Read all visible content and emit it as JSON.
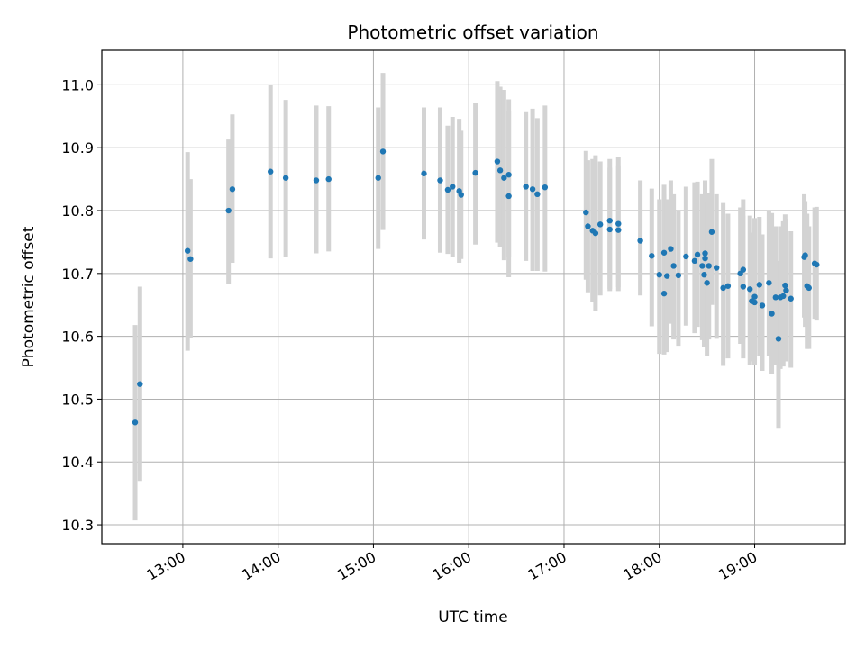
{
  "chart_data": {
    "type": "scatter",
    "title": "Photometric offset variation",
    "xlabel": "UTC time",
    "ylabel": "Photometric offset",
    "x_unit": "hours UTC (decimal)",
    "xlim": [
      12.15,
      19.95
    ],
    "ylim": [
      10.27,
      11.055
    ],
    "x_ticks": [
      {
        "value": 13,
        "label": "13:00"
      },
      {
        "value": 14,
        "label": "14:00"
      },
      {
        "value": 15,
        "label": "15:00"
      },
      {
        "value": 16,
        "label": "16:00"
      },
      {
        "value": 17,
        "label": "17:00"
      },
      {
        "value": 18,
        "label": "18:00"
      },
      {
        "value": 19,
        "label": "19:00"
      }
    ],
    "y_ticks": [
      {
        "value": 10.3,
        "label": "10.3"
      },
      {
        "value": 10.4,
        "label": "10.4"
      },
      {
        "value": 10.5,
        "label": "10.5"
      },
      {
        "value": 10.6,
        "label": "10.6"
      },
      {
        "value": 10.7,
        "label": "10.7"
      },
      {
        "value": 10.8,
        "label": "10.8"
      },
      {
        "value": 10.9,
        "label": "10.9"
      },
      {
        "value": 11.0,
        "label": "11.0"
      }
    ],
    "grid": true,
    "marker_color": "#1f77b4",
    "errorbar_color": "#d3d3d3",
    "points": [
      {
        "x": 12.5,
        "y": 10.463,
        "lo": 10.307,
        "hi": 10.618
      },
      {
        "x": 12.55,
        "y": 10.524,
        "lo": 10.37,
        "hi": 10.679
      },
      {
        "x": 13.05,
        "y": 10.736,
        "lo": 10.577,
        "hi": 10.893
      },
      {
        "x": 13.08,
        "y": 10.723,
        "lo": 10.598,
        "hi": 10.85
      },
      {
        "x": 13.48,
        "y": 10.8,
        "lo": 10.684,
        "hi": 10.913
      },
      {
        "x": 13.52,
        "y": 10.834,
        "lo": 10.717,
        "hi": 10.953
      },
      {
        "x": 13.92,
        "y": 10.862,
        "lo": 10.724,
        "hi": 11.0
      },
      {
        "x": 14.08,
        "y": 10.852,
        "lo": 10.727,
        "hi": 10.976
      },
      {
        "x": 14.4,
        "y": 10.848,
        "lo": 10.732,
        "hi": 10.967
      },
      {
        "x": 14.53,
        "y": 10.85,
        "lo": 10.735,
        "hi": 10.966
      },
      {
        "x": 15.05,
        "y": 10.852,
        "lo": 10.739,
        "hi": 10.964
      },
      {
        "x": 15.1,
        "y": 10.894,
        "lo": 10.769,
        "hi": 11.019
      },
      {
        "x": 15.53,
        "y": 10.859,
        "lo": 10.754,
        "hi": 10.964
      },
      {
        "x": 15.7,
        "y": 10.848,
        "lo": 10.733,
        "hi": 10.964
      },
      {
        "x": 15.78,
        "y": 10.833,
        "lo": 10.731,
        "hi": 10.935
      },
      {
        "x": 15.83,
        "y": 10.838,
        "lo": 10.727,
        "hi": 10.949
      },
      {
        "x": 15.9,
        "y": 10.831,
        "lo": 10.717,
        "hi": 10.946
      },
      {
        "x": 15.92,
        "y": 10.825,
        "lo": 10.723,
        "hi": 10.927
      },
      {
        "x": 16.07,
        "y": 10.86,
        "lo": 10.746,
        "hi": 10.971
      },
      {
        "x": 16.3,
        "y": 10.878,
        "lo": 10.749,
        "hi": 11.006
      },
      {
        "x": 16.33,
        "y": 10.864,
        "lo": 10.742,
        "hi": 10.997
      },
      {
        "x": 16.37,
        "y": 10.852,
        "lo": 10.721,
        "hi": 10.992
      },
      {
        "x": 16.42,
        "y": 10.857,
        "lo": 10.727,
        "hi": 10.977
      },
      {
        "x": 16.42,
        "y": 10.823,
        "lo": 10.694,
        "hi": 10.959
      },
      {
        "x": 16.6,
        "y": 10.838,
        "lo": 10.72,
        "hi": 10.958
      },
      {
        "x": 16.67,
        "y": 10.834,
        "lo": 10.704,
        "hi": 10.962
      },
      {
        "x": 16.72,
        "y": 10.826,
        "lo": 10.704,
        "hi": 10.947
      },
      {
        "x": 16.8,
        "y": 10.837,
        "lo": 10.703,
        "hi": 10.967
      },
      {
        "x": 17.23,
        "y": 10.797,
        "lo": 10.69,
        "hi": 10.895
      },
      {
        "x": 17.25,
        "y": 10.775,
        "lo": 10.67,
        "hi": 10.88
      },
      {
        "x": 17.3,
        "y": 10.768,
        "lo": 10.655,
        "hi": 10.882
      },
      {
        "x": 17.33,
        "y": 10.764,
        "lo": 10.64,
        "hi": 10.888
      },
      {
        "x": 17.38,
        "y": 10.778,
        "lo": 10.665,
        "hi": 10.878
      },
      {
        "x": 17.48,
        "y": 10.784,
        "lo": 10.675,
        "hi": 10.882
      },
      {
        "x": 17.48,
        "y": 10.77,
        "lo": 10.672,
        "hi": 10.868
      },
      {
        "x": 17.57,
        "y": 10.779,
        "lo": 10.678,
        "hi": 10.885
      },
      {
        "x": 17.57,
        "y": 10.769,
        "lo": 10.672,
        "hi": 10.872
      },
      {
        "x": 17.8,
        "y": 10.752,
        "lo": 10.665,
        "hi": 10.848
      },
      {
        "x": 17.92,
        "y": 10.728,
        "lo": 10.616,
        "hi": 10.835
      },
      {
        "x": 18.0,
        "y": 10.698,
        "lo": 10.572,
        "hi": 10.818
      },
      {
        "x": 18.05,
        "y": 10.733,
        "lo": 10.625,
        "hi": 10.841
      },
      {
        "x": 18.05,
        "y": 10.668,
        "lo": 10.571,
        "hi": 10.826
      },
      {
        "x": 18.08,
        "y": 10.696,
        "lo": 10.575,
        "hi": 10.818
      },
      {
        "x": 18.12,
        "y": 10.739,
        "lo": 10.62,
        "hi": 10.848
      },
      {
        "x": 18.15,
        "y": 10.712,
        "lo": 10.595,
        "hi": 10.826
      },
      {
        "x": 18.2,
        "y": 10.697,
        "lo": 10.585,
        "hi": 10.8
      },
      {
        "x": 18.28,
        "y": 10.727,
        "lo": 10.617,
        "hi": 10.838
      },
      {
        "x": 18.37,
        "y": 10.72,
        "lo": 10.605,
        "hi": 10.845
      },
      {
        "x": 18.4,
        "y": 10.73,
        "lo": 10.615,
        "hi": 10.846
      },
      {
        "x": 18.45,
        "y": 10.712,
        "lo": 10.594,
        "hi": 10.826
      },
      {
        "x": 18.47,
        "y": 10.698,
        "lo": 10.583,
        "hi": 10.806
      },
      {
        "x": 18.48,
        "y": 10.724,
        "lo": 10.6,
        "hi": 10.848
      },
      {
        "x": 18.48,
        "y": 10.732,
        "lo": 10.613,
        "hi": 10.848
      },
      {
        "x": 18.5,
        "y": 10.685,
        "lo": 10.568,
        "hi": 10.815
      },
      {
        "x": 18.52,
        "y": 10.712,
        "lo": 10.595,
        "hi": 10.828
      },
      {
        "x": 18.55,
        "y": 10.766,
        "lo": 10.65,
        "hi": 10.882
      },
      {
        "x": 18.6,
        "y": 10.709,
        "lo": 10.596,
        "hi": 10.826
      },
      {
        "x": 18.67,
        "y": 10.677,
        "lo": 10.553,
        "hi": 10.812
      },
      {
        "x": 18.72,
        "y": 10.68,
        "lo": 10.565,
        "hi": 10.795
      },
      {
        "x": 18.85,
        "y": 10.7,
        "lo": 10.588,
        "hi": 10.805
      },
      {
        "x": 18.88,
        "y": 10.706,
        "lo": 10.595,
        "hi": 10.818
      },
      {
        "x": 18.88,
        "y": 10.679,
        "lo": 10.565,
        "hi": 10.792
      },
      {
        "x": 18.95,
        "y": 10.675,
        "lo": 10.555,
        "hi": 10.792
      },
      {
        "x": 18.97,
        "y": 10.656,
        "lo": 10.56,
        "hi": 10.765
      },
      {
        "x": 19.0,
        "y": 10.663,
        "lo": 10.555,
        "hi": 10.773
      },
      {
        "x": 19.0,
        "y": 10.654,
        "lo": 10.556,
        "hi": 10.788
      },
      {
        "x": 19.05,
        "y": 10.682,
        "lo": 10.569,
        "hi": 10.79
      },
      {
        "x": 19.08,
        "y": 10.649,
        "lo": 10.545,
        "hi": 10.762
      },
      {
        "x": 19.15,
        "y": 10.685,
        "lo": 10.568,
        "hi": 10.8
      },
      {
        "x": 19.18,
        "y": 10.636,
        "lo": 10.54,
        "hi": 10.796
      },
      {
        "x": 19.22,
        "y": 10.662,
        "lo": 10.555,
        "hi": 10.775
      },
      {
        "x": 19.25,
        "y": 10.596,
        "lo": 10.453,
        "hi": 10.72
      },
      {
        "x": 19.27,
        "y": 10.662,
        "lo": 10.548,
        "hi": 10.775
      },
      {
        "x": 19.3,
        "y": 10.664,
        "lo": 10.552,
        "hi": 10.783
      },
      {
        "x": 19.32,
        "y": 10.681,
        "lo": 10.567,
        "hi": 10.794
      },
      {
        "x": 19.33,
        "y": 10.673,
        "lo": 10.56,
        "hi": 10.787
      },
      {
        "x": 19.38,
        "y": 10.66,
        "lo": 10.55,
        "hi": 10.767
      },
      {
        "x": 19.52,
        "y": 10.726,
        "lo": 10.63,
        "hi": 10.826
      },
      {
        "x": 19.53,
        "y": 10.729,
        "lo": 10.615,
        "hi": 10.815
      },
      {
        "x": 19.55,
        "y": 10.68,
        "lo": 10.58,
        "hi": 10.795
      },
      {
        "x": 19.57,
        "y": 10.677,
        "lo": 10.58,
        "hi": 10.775
      },
      {
        "x": 19.63,
        "y": 10.716,
        "lo": 10.628,
        "hi": 10.805
      },
      {
        "x": 19.65,
        "y": 10.714,
        "lo": 10.625,
        "hi": 10.806
      }
    ]
  }
}
